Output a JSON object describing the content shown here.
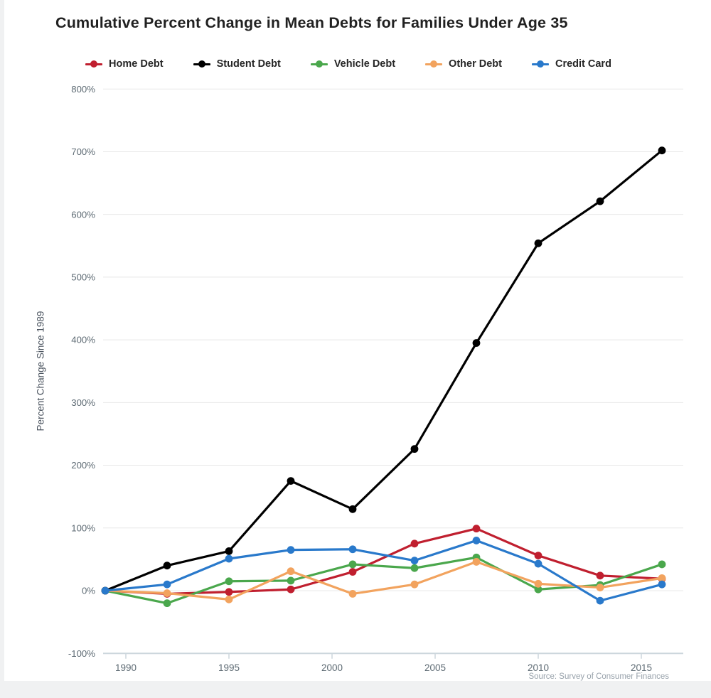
{
  "chart_data": {
    "type": "line",
    "title": "Cumulative Percent Change in Mean Debts for Families Under Age 35",
    "ylabel": "Percent Change Since 1989",
    "xlabel": "",
    "source": "Source: Survey of Consumer Finances",
    "x": [
      1989,
      1992,
      1995,
      1998,
      2001,
      2004,
      2007,
      2010,
      2013,
      2016
    ],
    "series": [
      {
        "name": "Home Debt",
        "color": "#c01f2f",
        "values": [
          0,
          -5,
          -2,
          2,
          30,
          75,
          99,
          56,
          24,
          19
        ]
      },
      {
        "name": "Student Debt",
        "color": "#000000",
        "values": [
          0,
          40,
          63,
          175,
          130,
          226,
          395,
          554,
          621,
          702
        ]
      },
      {
        "name": "Vehicle Debt",
        "color": "#4aa74c",
        "values": [
          0,
          -20,
          15,
          16,
          42,
          36,
          53,
          2,
          9,
          42
        ]
      },
      {
        "name": "Other Debt",
        "color": "#f2a35e",
        "values": [
          0,
          -4,
          -14,
          31,
          -5,
          10,
          46,
          11,
          5,
          20
        ]
      },
      {
        "name": "Credit Card",
        "color": "#2979cb",
        "values": [
          0,
          10,
          51,
          65,
          66,
          48,
          80,
          43,
          -16,
          10
        ]
      }
    ],
    "y_ticks": [
      800,
      700,
      600,
      500,
      400,
      300,
      200,
      100,
      0,
      -100
    ],
    "y_tick_suffix": "%",
    "x_ticks": [
      1990,
      1995,
      2000,
      2005,
      2010,
      2015
    ],
    "ylim": [
      -100,
      800
    ],
    "xlim": [
      1988.8,
      2017.0
    ],
    "grid": true,
    "legend_position": "top",
    "colors": {
      "grid": "#e8e8e8",
      "axis": "#ccd6dc",
      "tick_label": "#5d6a73",
      "title": "#212121",
      "source": "#98a2ab"
    }
  }
}
